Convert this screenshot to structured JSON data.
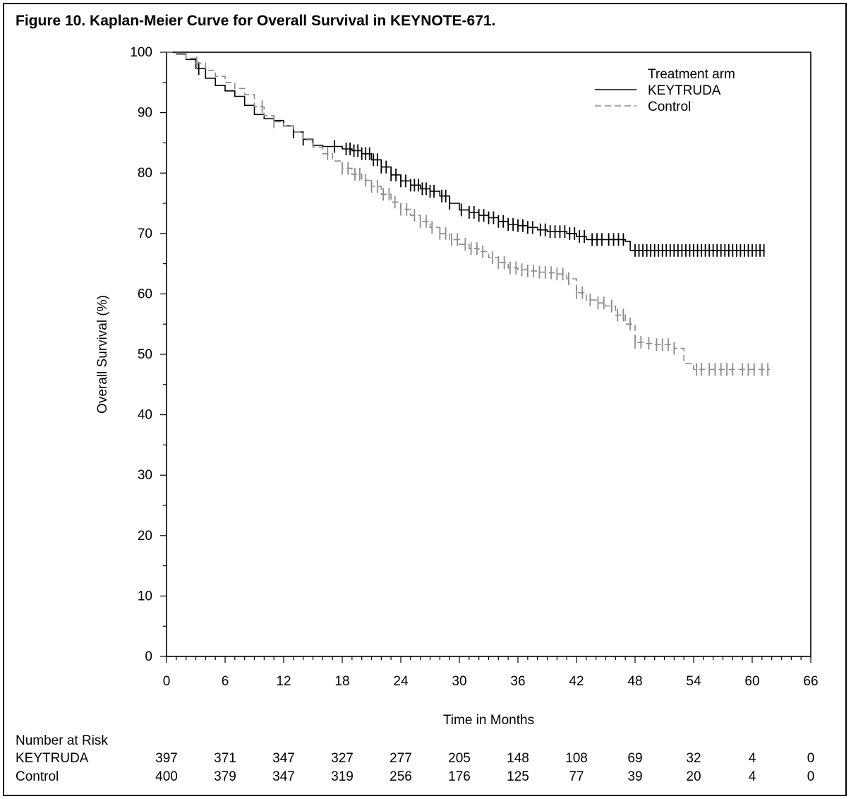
{
  "title": "Figure 10. Kaplan-Meier Curve for Overall Survival in KEYNOTE-671.",
  "chart_data": {
    "type": "line",
    "title": "Figure 10. Kaplan-Meier Curve for Overall Survival in KEYNOTE-671.",
    "xlabel": "Time in Months",
    "ylabel": "Overall Survival (%)",
    "xlim": [
      0,
      66
    ],
    "ylim": [
      0,
      100
    ],
    "xticks": [
      "0",
      "6",
      "12",
      "18",
      "24",
      "30",
      "36",
      "42",
      "48",
      "54",
      "60",
      "66"
    ],
    "yticks": [
      "0",
      "10",
      "20",
      "30",
      "40",
      "50",
      "60",
      "70",
      "80",
      "90",
      "100"
    ],
    "legend": {
      "title": "Treatment arm",
      "placement": "top-right"
    },
    "grid": false,
    "series": [
      {
        "name": "KEYTRUDA",
        "color": "#000000",
        "dash": "solid",
        "x": [
          0,
          1,
          2,
          3,
          4,
          5,
          6,
          7,
          8,
          9,
          10,
          11,
          12,
          13,
          14,
          15,
          16,
          17,
          18,
          19,
          20,
          21,
          22,
          23,
          24,
          25,
          26,
          27,
          28,
          29,
          30,
          31,
          32,
          33,
          34,
          35,
          36,
          37,
          38,
          39,
          40,
          41,
          42,
          43,
          44,
          45,
          46,
          47,
          47.5,
          48,
          50,
          52,
          54,
          56,
          58,
          60,
          61.3
        ],
        "y": [
          100,
          99.7,
          98.8,
          97.3,
          95.7,
          94.5,
          93.6,
          92.7,
          91.2,
          89.7,
          89.0,
          88.7,
          87.8,
          86.8,
          85.6,
          84.6,
          84.4,
          84.4,
          84.0,
          83.7,
          83.2,
          82.2,
          81.0,
          79.7,
          78.7,
          78.0,
          77.4,
          77.0,
          76.2,
          75.0,
          73.9,
          73.5,
          73.0,
          72.6,
          72.0,
          71.5,
          71.3,
          71.0,
          70.6,
          70.3,
          70.3,
          70.0,
          69.5,
          69.0,
          69.0,
          69.0,
          69.0,
          68.7,
          67.2,
          67.2,
          67.2,
          67.2,
          67.2,
          67.2,
          67.2,
          67.2,
          67.2
        ],
        "censor_x": [
          3.3,
          13.0,
          14.0,
          17.2,
          18.4,
          18.8,
          19.2,
          19.6,
          20.0,
          20.4,
          20.8,
          21.2,
          21.6,
          22.0,
          22.5,
          23.0,
          23.5,
          24.0,
          24.5,
          25.0,
          25.4,
          25.8,
          26.2,
          26.6,
          27.0,
          27.4,
          28.2,
          28.6,
          29.0,
          30.2,
          31.0,
          31.5,
          32.0,
          32.5,
          33.0,
          33.5,
          34.0,
          34.5,
          35.0,
          35.5,
          36.0,
          36.5,
          37.0,
          37.5,
          38.3,
          38.8,
          39.3,
          39.8,
          40.3,
          40.8,
          41.3,
          41.8,
          42.3,
          42.8,
          43.6,
          44.1,
          44.6,
          45.3,
          45.8,
          46.3,
          46.8,
          48.0,
          48.4,
          48.8,
          49.2,
          49.6,
          50.0,
          50.4,
          50.8,
          51.2,
          51.6,
          52.0,
          52.4,
          52.8,
          53.2,
          53.6,
          54.0,
          54.4,
          54.8,
          55.2,
          55.6,
          56.0,
          56.4,
          56.8,
          57.2,
          57.6,
          58.0,
          58.4,
          58.8,
          59.2,
          59.6,
          60.0,
          60.4,
          60.8,
          61.2
        ]
      },
      {
        "name": "Control",
        "color": "#8c8c8c",
        "dash": "dashed",
        "x": [
          0,
          1,
          2,
          3,
          4,
          5,
          6,
          7,
          8,
          9,
          10,
          11,
          12,
          13,
          14,
          15,
          16,
          17,
          18,
          19,
          20,
          21,
          22,
          23,
          24,
          25,
          26,
          27,
          28,
          29,
          30,
          31,
          32,
          33,
          34,
          35,
          36,
          37,
          38,
          39,
          40,
          41,
          42,
          43,
          44,
          45,
          46,
          47,
          48,
          49,
          50,
          51,
          52,
          53,
          54,
          56,
          58,
          60,
          61.8
        ],
        "y": [
          100,
          99.8,
          99.0,
          98.2,
          97.0,
          96.0,
          95.0,
          94.0,
          93.0,
          91.0,
          89.5,
          88.5,
          87.8,
          86.8,
          85.5,
          84.3,
          83.2,
          82.0,
          80.8,
          79.8,
          78.8,
          77.8,
          76.5,
          75.2,
          74.0,
          73.0,
          72.0,
          71.0,
          70.0,
          69.0,
          68.2,
          67.5,
          67.0,
          66.0,
          65.2,
          64.3,
          64.0,
          63.8,
          63.6,
          63.5,
          63.3,
          62.5,
          60.2,
          59.0,
          58.5,
          58.0,
          56.5,
          55.0,
          52.0,
          51.8,
          51.6,
          51.6,
          51.0,
          48.5,
          47.5,
          47.5,
          47.5,
          47.5,
          47.5
        ],
        "censor_x": [
          3.1,
          9.8,
          11.0,
          16.5,
          18.0,
          18.6,
          19.3,
          19.8,
          20.4,
          21.0,
          21.6,
          22.2,
          22.8,
          23.4,
          24.0,
          24.6,
          25.4,
          26.0,
          26.6,
          27.2,
          28.0,
          28.6,
          29.2,
          29.8,
          30.6,
          31.2,
          31.8,
          32.4,
          33.4,
          34.0,
          34.6,
          35.2,
          35.8,
          36.4,
          37.0,
          37.6,
          38.2,
          38.8,
          39.4,
          40.0,
          40.6,
          41.2,
          42.0,
          42.6,
          43.4,
          44.2,
          44.8,
          45.6,
          46.2,
          46.8,
          47.5,
          48.0,
          48.6,
          49.4,
          50.2,
          50.8,
          51.4,
          52.0,
          54.3,
          54.8,
          55.6,
          56.2,
          56.8,
          57.4,
          58.0,
          59.0,
          59.6,
          60.2,
          61.0,
          61.6
        ]
      }
    ]
  },
  "risk_table": {
    "title": "Number at Risk",
    "times": [
      0,
      6,
      12,
      18,
      24,
      30,
      36,
      42,
      48,
      54,
      60,
      66
    ],
    "rows": [
      {
        "label": "KEYTRUDA",
        "values": [
          "397",
          "371",
          "347",
          "327",
          "277",
          "205",
          "148",
          "108",
          "69",
          "32",
          "4",
          "0"
        ]
      },
      {
        "label": "Control",
        "values": [
          "400",
          "379",
          "347",
          "319",
          "256",
          "176",
          "125",
          "77",
          "39",
          "20",
          "4",
          "0"
        ]
      }
    ]
  }
}
